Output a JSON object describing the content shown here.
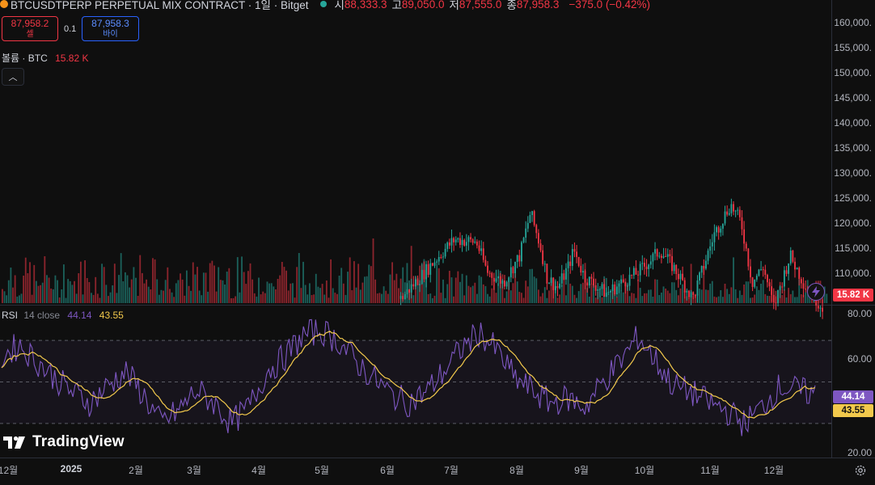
{
  "header": {
    "symbol_title": "BTCUSDTPERP PERPETUAL MIX CONTRACT · 1일 · Bitget",
    "ohlc": [
      {
        "key": "시",
        "value": "88,333.3"
      },
      {
        "key": "고",
        "value": "89,050.0"
      },
      {
        "key": "저",
        "value": "87,555.0"
      },
      {
        "key": "종",
        "value": "87,958.3"
      }
    ],
    "change": "−375.0 (−0.42%)"
  },
  "trade": {
    "sell_price": "87,958.2",
    "sell_label": "셀",
    "spread": "0.1",
    "buy_price": "87,958.3",
    "buy_label": "바이"
  },
  "volume": {
    "legend_label": "볼륨 · BTC",
    "legend_value": "15.82 K",
    "tag_value": "15.82 K"
  },
  "rsi": {
    "label": "RSI",
    "params": "14 close",
    "value": "44.14",
    "ma_value": "43.55",
    "tag_value": "44.14",
    "tag_ma_value": "43.55",
    "levels": {
      "upper": 70,
      "middle": 50,
      "lower": 30
    }
  },
  "price_axis": {
    "labels": [
      "160,000.",
      "155,000.",
      "150,000.",
      "145,000.",
      "140,000.",
      "135,000.",
      "130,000.",
      "125,000.",
      "120,000.",
      "115,000.",
      "110,000."
    ]
  },
  "rsi_axis": {
    "labels": [
      "80.00",
      "60.00",
      "20.00"
    ]
  },
  "time_axis": {
    "labels": [
      {
        "text": "12월",
        "year": false
      },
      {
        "text": "2025",
        "year": true
      },
      {
        "text": "2월",
        "year": false
      },
      {
        "text": "3월",
        "year": false
      },
      {
        "text": "4월",
        "year": false
      },
      {
        "text": "5월",
        "year": false
      },
      {
        "text": "6월",
        "year": false
      },
      {
        "text": "7월",
        "year": false
      },
      {
        "text": "8월",
        "year": false
      },
      {
        "text": "9월",
        "year": false
      },
      {
        "text": "10월",
        "year": false
      },
      {
        "text": "11월",
        "year": false
      },
      {
        "text": "12월",
        "year": false
      }
    ]
  },
  "branding": {
    "logo_text": "TradingView"
  },
  "colors": {
    "up": "#26a69a",
    "down": "#f23645",
    "rsi_line": "#7e57c2",
    "rsi_ma": "#f2c94c",
    "background": "#0f0f0f"
  },
  "chart_data": {
    "type": "candlestick",
    "interval": "1일",
    "price_ylim": [
      106000,
      163000
    ],
    "price_anchors": [
      {
        "x": 0,
        "price": 0
      },
      {
        "x": 0.64,
        "price": 108000
      },
      {
        "x": 0.72,
        "price": 117000
      },
      {
        "x": 0.74,
        "price": 119000
      },
      {
        "x": 0.78,
        "price": 118500
      },
      {
        "x": 0.8,
        "price": 113000
      },
      {
        "x": 0.83,
        "price": 111000
      },
      {
        "x": 0.86,
        "price": 116000
      },
      {
        "x": 0.88,
        "price": 124000
      },
      {
        "x": 0.9,
        "price": 117000
      },
      {
        "x": 0.91,
        "price": 112000
      },
      {
        "x": 0.93,
        "price": 110000
      },
      {
        "x": 0.95,
        "price": 114000
      },
      {
        "x": 0.96,
        "price": 117000
      },
      {
        "x": 0.98,
        "price": 112000
      },
      {
        "x": 1.02,
        "price": 109000
      },
      {
        "x": 1.08,
        "price": 113000
      },
      {
        "x": 1.12,
        "price": 117000
      },
      {
        "x": 1.15,
        "price": 113000
      },
      {
        "x": 1.18,
        "price": 108000
      },
      {
        "x": 1.22,
        "price": 120000
      },
      {
        "x": 1.25,
        "price": 125500
      },
      {
        "x": 1.27,
        "price": 122000
      },
      {
        "x": 1.29,
        "price": 111000
      },
      {
        "x": 1.31,
        "price": 114000
      },
      {
        "x": 1.33,
        "price": 106500
      },
      {
        "x": 1.36,
        "price": 116000
      },
      {
        "x": 1.39,
        "price": 110000
      },
      {
        "x": 1.42,
        "price": 106500
      }
    ],
    "rsi_ylim": [
      14,
      86
    ],
    "rsi_series_sketch": [
      62,
      68,
      60,
      52,
      45,
      40,
      48,
      55,
      44,
      30,
      36,
      46,
      40,
      30,
      38,
      55,
      62,
      72,
      75,
      70,
      60,
      52,
      44,
      40,
      45,
      55,
      66,
      74,
      65,
      52,
      46,
      40,
      42,
      38,
      50,
      60,
      72,
      60,
      48,
      45,
      40,
      36,
      30,
      38,
      48,
      46,
      44
    ]
  }
}
